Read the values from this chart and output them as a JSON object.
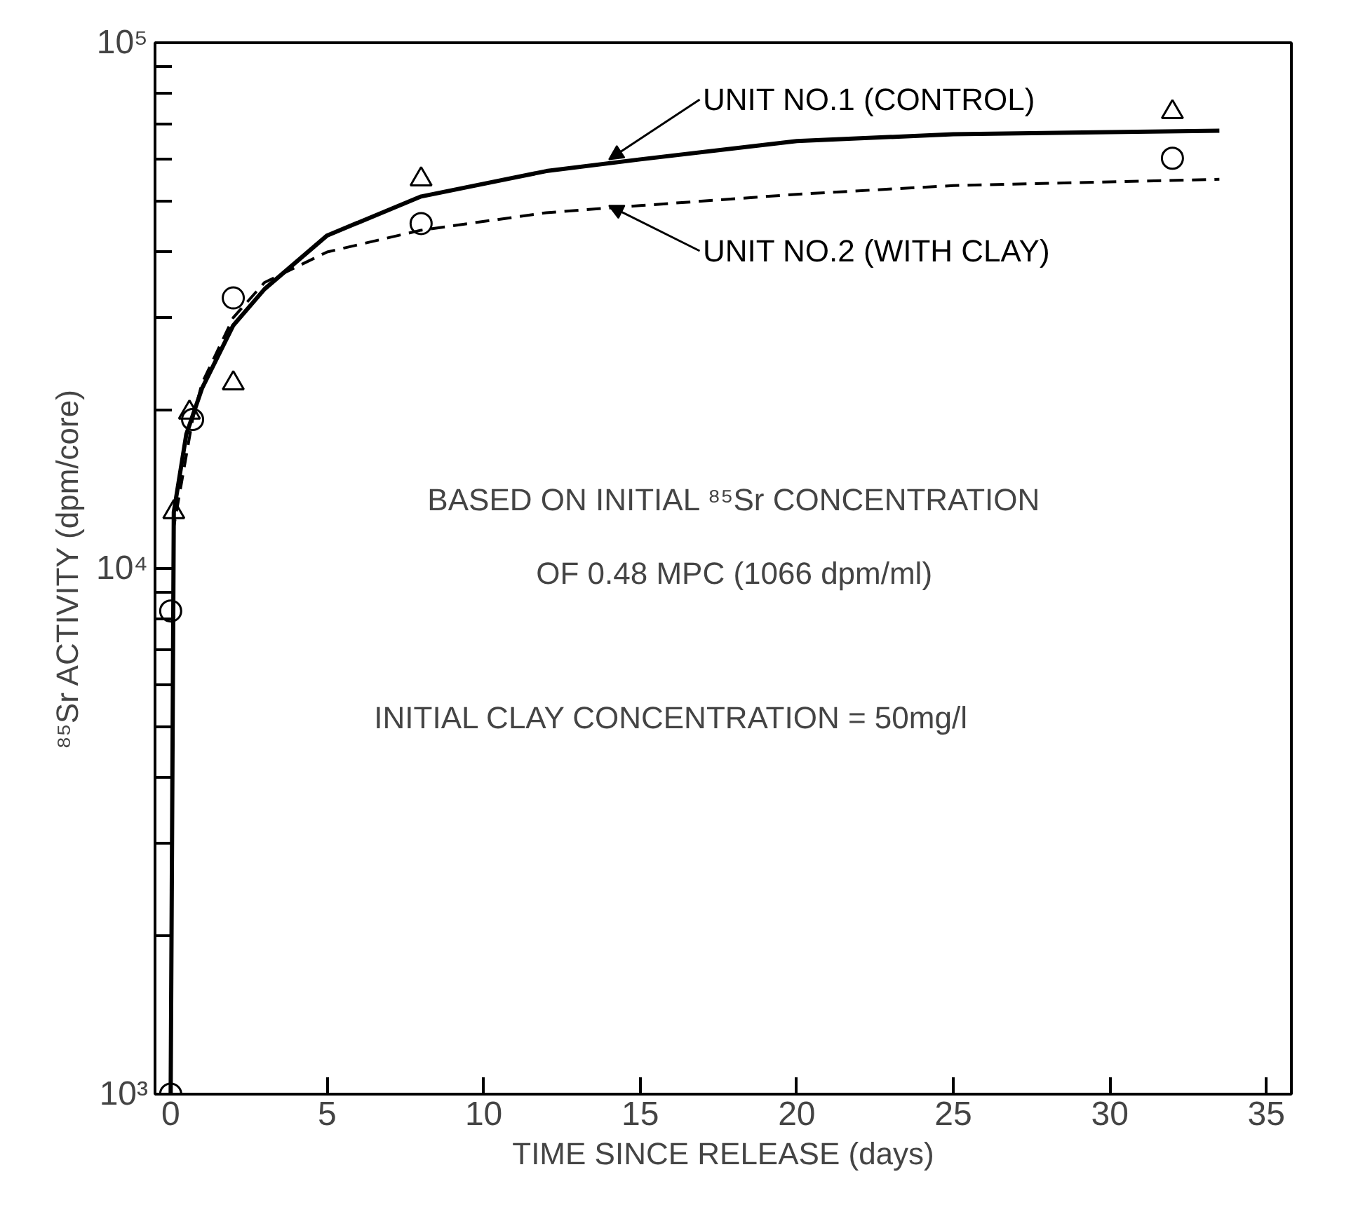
{
  "chart_data": {
    "type": "scatter",
    "xlabel": "TIME SINCE RELEASE (days)",
    "ylabel": "⁸⁵Sr ACTIVITY (dpm/core)",
    "log": "y",
    "xlim": [
      -0.5,
      35.8
    ],
    "xticks": [
      0,
      5,
      10,
      15,
      20,
      25,
      30,
      35
    ],
    "ylim": [
      1000,
      100000
    ],
    "yticks": [
      {
        "value": 1000,
        "label": "10³"
      },
      {
        "value": 10000,
        "label": "10⁴"
      },
      {
        "value": 100000,
        "label": "10⁵"
      }
    ],
    "grid": false,
    "series": [
      {
        "marker": "triangle",
        "color": "#000000",
        "x": [
          0.1,
          0.6,
          2,
          8,
          32
        ],
        "values": [
          12800,
          19800,
          22500,
          55000,
          73800
        ]
      },
      {
        "marker": "circle",
        "color": "#000000",
        "x": [
          0,
          0,
          0.7,
          2,
          8,
          32
        ],
        "values": [
          1000,
          8300,
          19200,
          32700,
          45300,
          60300
        ]
      },
      {
        "type": "line",
        "name": "UNIT NO.1 (CONTROL)",
        "line_style": "solid",
        "color": "#000000",
        "x": [
          0,
          0.1,
          0.5,
          1,
          2,
          3,
          5,
          8,
          12,
          15,
          20,
          25,
          33.5
        ],
        "values": [
          1000,
          12800,
          18000,
          22000,
          29000,
          34000,
          43000,
          51000,
          57000,
          60000,
          65000,
          67000,
          68000
        ]
      },
      {
        "type": "line",
        "name": "UNIT NO.2 (WITH CLAY)",
        "line_style": "dashed",
        "color": "#000000",
        "x": [
          0,
          0.1,
          0.7,
          1,
          2,
          3,
          5,
          8,
          12,
          15,
          20,
          25,
          33.5
        ],
        "values": [
          1000,
          12000,
          19200,
          22500,
          30000,
          35000,
          40000,
          44000,
          47500,
          49000,
          51500,
          53500,
          55000
        ]
      }
    ],
    "annotations": [
      "BASED ON INITIAL ⁸⁵Sr CONCENTRATION",
      "OF 0.48 MPC (1066 dpm/ml)",
      "INITIAL CLAY CONCENTRATION = 50mg/l"
    ]
  }
}
